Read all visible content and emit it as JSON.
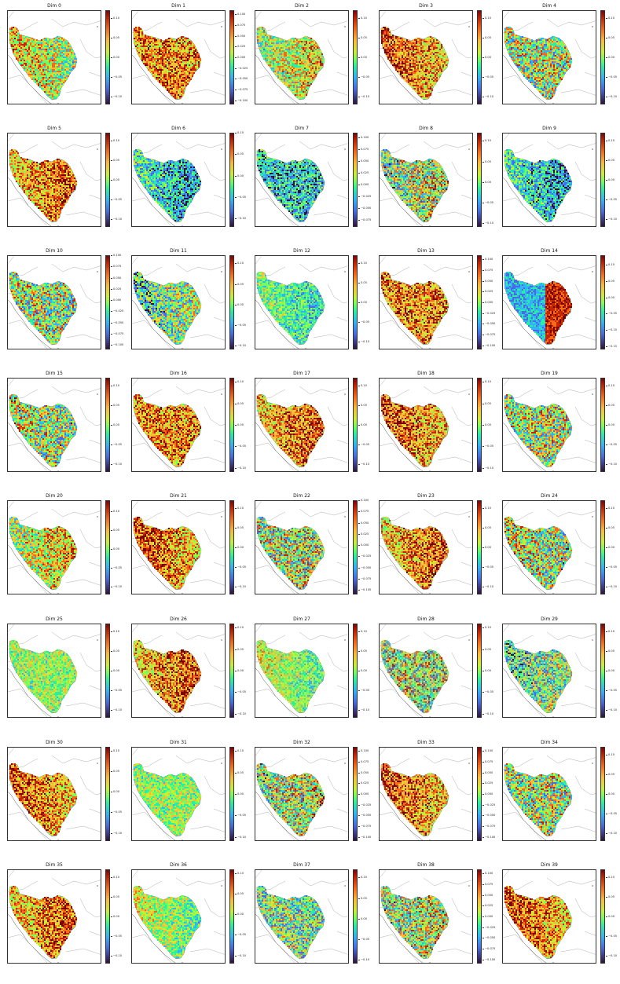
{
  "chart_data": {
    "type": "heatmap",
    "panels": [
      {
        "title": "Dim 0",
        "ticks": [
          "0.10",
          "0.05",
          "0.00",
          "−0.05",
          "−0.10"
        ],
        "range": [
          -0.12,
          0.12
        ],
        "dominant": "mixed-yellow-green"
      },
      {
        "title": "Dim 1",
        "ticks": [
          "0.100",
          "0.075",
          "0.050",
          "0.025",
          "0.000",
          "−0.025",
          "−0.050",
          "−0.075",
          "−0.100"
        ],
        "range": [
          -0.11,
          0.11
        ],
        "dominant": "orange"
      },
      {
        "title": "Dim 2",
        "ticks": [
          "0.10",
          "0.05",
          "0.00",
          "−0.05",
          "−0.10"
        ],
        "range": [
          -0.12,
          0.12
        ],
        "dominant": "mixed-yellow-green"
      },
      {
        "title": "Dim 3",
        "ticks": [
          "0.10",
          "0.05",
          "0.00",
          "−0.05",
          "−0.10"
        ],
        "range": [
          -0.12,
          0.12
        ],
        "dominant": "orange"
      },
      {
        "title": "Dim 4",
        "ticks": [
          "0.10",
          "0.05",
          "0.00",
          "−0.05",
          "−0.10"
        ],
        "range": [
          -0.12,
          0.12
        ],
        "dominant": "mixed"
      },
      {
        "title": "Dim 5",
        "ticks": [
          "0.10",
          "0.05",
          "0.00",
          "−0.05",
          "−0.10"
        ],
        "range": [
          -0.12,
          0.12
        ],
        "dominant": "orange"
      },
      {
        "title": "Dim 6",
        "ticks": [
          "0.10",
          "0.05",
          "0.00",
          "−0.05",
          "−0.10"
        ],
        "range": [
          -0.12,
          0.1
        ],
        "dominant": "blue"
      },
      {
        "title": "Dim 7",
        "ticks": [
          "0.100",
          "0.075",
          "0.050",
          "0.025",
          "0.000",
          "−0.025",
          "−0.050",
          "−0.075"
        ],
        "range": [
          -0.09,
          0.11
        ],
        "dominant": "blue"
      },
      {
        "title": "Dim 8",
        "ticks": [
          "0.10",
          "0.05",
          "0.00",
          "−0.05",
          "−0.10"
        ],
        "range": [
          -0.11,
          0.12
        ],
        "dominant": "mixed"
      },
      {
        "title": "Dim 9",
        "ticks": [
          "0.10",
          "0.05",
          "0.00",
          "−0.05",
          "−0.10"
        ],
        "range": [
          -0.12,
          0.12
        ],
        "dominant": "blue"
      },
      {
        "title": "Dim 10",
        "ticks": [
          "0.100",
          "0.075",
          "0.050",
          "0.025",
          "0.000",
          "−0.025",
          "−0.050",
          "−0.075",
          "−0.100"
        ],
        "range": [
          -0.11,
          0.1
        ],
        "dominant": "mixed"
      },
      {
        "title": "Dim 11",
        "ticks": [
          "0.10",
          "0.05",
          "0.00",
          "−0.05",
          "−0.10"
        ],
        "range": [
          -0.11,
          0.12
        ],
        "dominant": "mixed-blue"
      },
      {
        "title": "Dim 12",
        "ticks": [
          "0.10",
          "0.05",
          "0.00",
          "−0.05",
          "−0.10"
        ],
        "range": [
          -0.12,
          0.12
        ],
        "dominant": "green-blue"
      },
      {
        "title": "Dim 13",
        "ticks": [
          "0.100",
          "0.075",
          "0.050",
          "0.025",
          "0.000",
          "−0.025",
          "−0.050",
          "−0.075",
          "−0.100"
        ],
        "range": [
          -0.11,
          0.11
        ],
        "dominant": "orange"
      },
      {
        "title": "Dim 14",
        "ticks": [
          "0.10",
          "0.05",
          "0.00",
          "−0.05",
          "−0.10",
          "−0.15"
        ],
        "range": [
          -0.16,
          0.13
        ],
        "dominant": "blue-red"
      },
      {
        "title": "Dim 15",
        "ticks": [
          "0.10",
          "0.05",
          "0.00",
          "−0.05",
          "−0.10"
        ],
        "range": [
          -0.12,
          0.12
        ],
        "dominant": "mixed"
      },
      {
        "title": "Dim 16",
        "ticks": [
          "0.10",
          "0.05",
          "0.00",
          "−0.05",
          "−0.10"
        ],
        "range": [
          -0.11,
          0.11
        ],
        "dominant": "orange"
      },
      {
        "title": "Dim 17",
        "ticks": [
          "0.10",
          "0.05",
          "0.00",
          "−0.05",
          "−0.10"
        ],
        "range": [
          -0.12,
          0.12
        ],
        "dominant": "orange"
      },
      {
        "title": "Dim 18",
        "ticks": [
          "0.10",
          "0.05",
          "0.00",
          "−0.05",
          "−0.10"
        ],
        "range": [
          -0.11,
          0.11
        ],
        "dominant": "orange"
      },
      {
        "title": "Dim 19",
        "ticks": [
          "0.10",
          "0.05",
          "0.00",
          "−0.05",
          "−0.10"
        ],
        "range": [
          -0.12,
          0.12
        ],
        "dominant": "mixed"
      },
      {
        "title": "Dim 20",
        "ticks": [
          "0.10",
          "0.05",
          "0.00",
          "−0.05",
          "−0.10"
        ],
        "range": [
          -0.12,
          0.13
        ],
        "dominant": "mixed-yellow"
      },
      {
        "title": "Dim 21",
        "ticks": [
          "0.10",
          "0.05",
          "0.00",
          "−0.05",
          "−0.10"
        ],
        "range": [
          -0.12,
          0.12
        ],
        "dominant": "orange"
      },
      {
        "title": "Dim 22",
        "ticks": [
          "0.100",
          "0.075",
          "0.050",
          "0.025",
          "0.000",
          "−0.025",
          "−0.050",
          "−0.075",
          "−0.100"
        ],
        "range": [
          -0.11,
          0.1
        ],
        "dominant": "mixed"
      },
      {
        "title": "Dim 23",
        "ticks": [
          "0.10",
          "0.05",
          "0.00",
          "−0.05",
          "−0.10"
        ],
        "range": [
          -0.12,
          0.12
        ],
        "dominant": "orange"
      },
      {
        "title": "Dim 24",
        "ticks": [
          "0.10",
          "0.05",
          "0.00",
          "−0.05",
          "−0.10"
        ],
        "range": [
          -0.12,
          0.12
        ],
        "dominant": "mixed"
      },
      {
        "title": "Dim 25",
        "ticks": [
          "0.10",
          "0.05",
          "0.00",
          "−0.05",
          "−0.10"
        ],
        "range": [
          -0.12,
          0.12
        ],
        "dominant": "green"
      },
      {
        "title": "Dim 26",
        "ticks": [
          "0.10",
          "0.05",
          "0.00",
          "−0.05",
          "−0.10"
        ],
        "range": [
          -0.11,
          0.11
        ],
        "dominant": "orange"
      },
      {
        "title": "Dim 27",
        "ticks": [
          "0.10",
          "0.05",
          "0.00",
          "−0.05",
          "−0.10"
        ],
        "range": [
          -0.12,
          0.12
        ],
        "dominant": "green"
      },
      {
        "title": "Dim 28",
        "ticks": [
          "0.10",
          "0.05",
          "0.00",
          "−0.05",
          "−0.10"
        ],
        "range": [
          -0.11,
          0.11
        ],
        "dominant": "mixed"
      },
      {
        "title": "Dim 29",
        "ticks": [
          "0.10",
          "0.05",
          "0.00",
          "−0.05",
          "−0.10"
        ],
        "range": [
          -0.12,
          0.12
        ],
        "dominant": "mixed-blue"
      },
      {
        "title": "Dim 30",
        "ticks": [
          "0.10",
          "0.05",
          "0.00",
          "−0.05",
          "−0.10"
        ],
        "range": [
          -0.12,
          0.11
        ],
        "dominant": "orange"
      },
      {
        "title": "Dim 31",
        "ticks": [
          "0.10",
          "0.05",
          "0.00",
          "−0.05",
          "−0.10"
        ],
        "range": [
          -0.11,
          0.11
        ],
        "dominant": "green"
      },
      {
        "title": "Dim 32",
        "ticks": [
          "0.100",
          "0.075",
          "0.050",
          "0.025",
          "0.000",
          "−0.025",
          "−0.050",
          "−0.075",
          "−0.100"
        ],
        "range": [
          -0.11,
          0.11
        ],
        "dominant": "mixed"
      },
      {
        "title": "Dim 33",
        "ticks": [
          "0.100",
          "0.075",
          "0.050",
          "0.025",
          "0.000",
          "−0.025",
          "−0.050",
          "−0.075",
          "−0.100"
        ],
        "range": [
          -0.11,
          0.11
        ],
        "dominant": "orange"
      },
      {
        "title": "Dim 34",
        "ticks": [
          "0.10",
          "0.05",
          "0.00",
          "−0.05",
          "−0.10"
        ],
        "range": [
          -0.12,
          0.12
        ],
        "dominant": "mixed"
      },
      {
        "title": "Dim 35",
        "ticks": [
          "0.10",
          "0.05",
          "0.00",
          "−0.05",
          "−0.10"
        ],
        "range": [
          -0.12,
          0.12
        ],
        "dominant": "orange"
      },
      {
        "title": "Dim 36",
        "ticks": [
          "0.10",
          "0.05",
          "0.00",
          "−0.05",
          "−0.10"
        ],
        "range": [
          -0.12,
          0.11
        ],
        "dominant": "green"
      },
      {
        "title": "Dim 37",
        "ticks": [
          "0.10",
          "0.05",
          "0.00",
          "−0.05",
          "−0.10"
        ],
        "range": [
          -0.11,
          0.12
        ],
        "dominant": "mixed-blue"
      },
      {
        "title": "Dim 38",
        "ticks": [
          "0.100",
          "0.075",
          "0.050",
          "0.025",
          "0.000",
          "−0.025",
          "−0.050",
          "−0.075",
          "−0.100"
        ],
        "range": [
          -0.11,
          0.11
        ],
        "dominant": "mixed"
      },
      {
        "title": "Dim 39",
        "ticks": [
          "0.10",
          "0.05",
          "0.00",
          "−0.05",
          "−0.10"
        ],
        "range": [
          -0.12,
          0.12
        ],
        "dominant": "orange"
      }
    ],
    "colormap": "turbo",
    "grid": false,
    "layout": "8 rows x 5 columns"
  },
  "colors": {
    "map_border": "#555555",
    "region_outline": "#888888",
    "colormap_stops": [
      "#30123b",
      "#466be3",
      "#32b2f8",
      "#29efa2",
      "#72fe5e",
      "#c9ef34",
      "#faba39",
      "#f66b19",
      "#c42503",
      "#7a0403"
    ]
  }
}
